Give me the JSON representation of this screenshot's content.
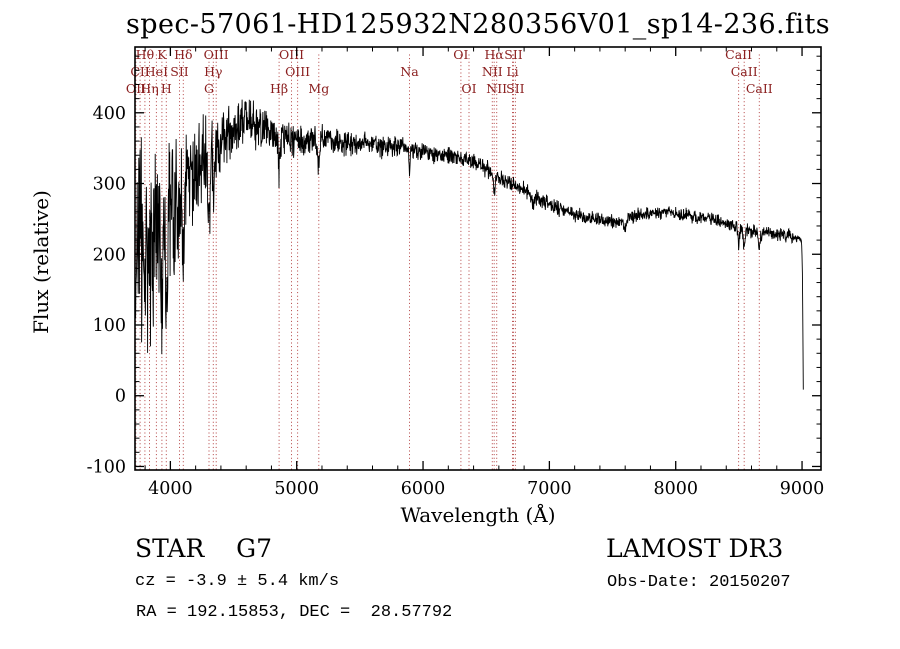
{
  "title": "spec-57061-HD125932N280356V01_sp14-236.fits",
  "colors": {
    "background": "#ffffff",
    "spectrum": "#000000",
    "axis": "#000000",
    "marker": "#b24040",
    "label": "#8b2020"
  },
  "footer": {
    "class_label": "STAR    G7",
    "cz": "cz = -3.9 ± 5.4 km/s",
    "radec": "RA = 192.15853, DEC =  28.57792",
    "survey": "LAMOST DR3",
    "obs_date": "Obs-Date: 20150207"
  },
  "chart_data": {
    "type": "line",
    "title": "spec-57061-HD125932N280356V01_sp14-236.fits",
    "xlabel": "Wavelength (Å)",
    "ylabel": "Flux (relative)",
    "xlim": [
      3720,
      9150
    ],
    "ylim": [
      -105,
      493
    ],
    "xticks": [
      4000,
      5000,
      6000,
      7000,
      8000,
      9000
    ],
    "yticks": [
      -100,
      0,
      100,
      200,
      300,
      400
    ],
    "grid": false,
    "legend": "none",
    "seed": 20150207,
    "sample_range": [
      3725,
      9010
    ],
    "sample_step": 2.5,
    "continuum": [
      [
        3740,
        185
      ],
      [
        3770,
        205
      ],
      [
        3800,
        175
      ],
      [
        3830,
        210
      ],
      [
        3860,
        185
      ],
      [
        3900,
        215
      ],
      [
        3940,
        235
      ],
      [
        3980,
        255
      ],
      [
        4020,
        270
      ],
      [
        4060,
        280
      ],
      [
        4100,
        290
      ],
      [
        4150,
        305
      ],
      [
        4200,
        315
      ],
      [
        4250,
        330
      ],
      [
        4300,
        340
      ],
      [
        4350,
        350
      ],
      [
        4400,
        362
      ],
      [
        4450,
        372
      ],
      [
        4500,
        380
      ],
      [
        4550,
        385
      ],
      [
        4600,
        388
      ],
      [
        4650,
        385
      ],
      [
        4700,
        382
      ],
      [
        4750,
        378
      ],
      [
        4800,
        372
      ],
      [
        4850,
        368
      ],
      [
        4900,
        366
      ],
      [
        4950,
        362
      ],
      [
        5000,
        360
      ],
      [
        5100,
        358
      ],
      [
        5200,
        363
      ],
      [
        5300,
        360
      ],
      [
        5400,
        356
      ],
      [
        5500,
        359
      ],
      [
        5600,
        354
      ],
      [
        5700,
        350
      ],
      [
        5800,
        354
      ],
      [
        5900,
        349
      ],
      [
        6000,
        345
      ],
      [
        6100,
        341
      ],
      [
        6200,
        340
      ],
      [
        6300,
        336
      ],
      [
        6400,
        331
      ],
      [
        6500,
        322
      ],
      [
        6600,
        312
      ],
      [
        6700,
        301
      ],
      [
        6800,
        291
      ],
      [
        6900,
        281
      ],
      [
        7000,
        271
      ],
      [
        7100,
        262
      ],
      [
        7200,
        256
      ],
      [
        7300,
        251
      ],
      [
        7400,
        248
      ],
      [
        7500,
        246
      ],
      [
        7600,
        250
      ],
      [
        7700,
        255
      ],
      [
        7800,
        258
      ],
      [
        7900,
        260
      ],
      [
        8000,
        258
      ],
      [
        8100,
        255
      ],
      [
        8200,
        252
      ],
      [
        8300,
        249
      ],
      [
        8400,
        243
      ],
      [
        8500,
        236
      ],
      [
        8600,
        232
      ],
      [
        8700,
        230
      ],
      [
        8800,
        228
      ],
      [
        8900,
        226
      ],
      [
        8995,
        221
      ],
      [
        9002,
        190
      ],
      [
        9010,
        5
      ]
    ],
    "noise_profile": [
      [
        3740,
        115
      ],
      [
        3800,
        110
      ],
      [
        3850,
        105
      ],
      [
        3900,
        95
      ],
      [
        3950,
        85
      ],
      [
        4000,
        75
      ],
      [
        4050,
        65
      ],
      [
        4100,
        58
      ],
      [
        4200,
        48
      ],
      [
        4300,
        42
      ],
      [
        4400,
        33
      ],
      [
        4500,
        28
      ],
      [
        4600,
        26
      ],
      [
        4700,
        24
      ],
      [
        4800,
        22
      ],
      [
        4900,
        20
      ],
      [
        5000,
        18
      ],
      [
        5200,
        15
      ],
      [
        5400,
        14
      ],
      [
        5600,
        12
      ],
      [
        5800,
        11
      ],
      [
        6000,
        10
      ],
      [
        6300,
        9
      ],
      [
        6600,
        9
      ],
      [
        7000,
        8
      ],
      [
        7500,
        7
      ],
      [
        8000,
        7
      ],
      [
        8500,
        7
      ],
      [
        8900,
        7
      ],
      [
        9010,
        5
      ]
    ],
    "absorption_lines": [
      {
        "wl": 3933,
        "depth": 120,
        "width": 10
      },
      {
        "wl": 3968,
        "depth": 110,
        "width": 10
      },
      {
        "wl": 4102,
        "depth": 90,
        "width": 9
      },
      {
        "wl": 4306,
        "depth": 70,
        "width": 14
      },
      {
        "wl": 4341,
        "depth": 65,
        "width": 9
      },
      {
        "wl": 4861,
        "depth": 45,
        "width": 9
      },
      {
        "wl": 5175,
        "depth": 35,
        "width": 13
      },
      {
        "wl": 5893,
        "depth": 30,
        "width": 9
      },
      {
        "wl": 6563,
        "depth": 28,
        "width": 9
      },
      {
        "wl": 6870,
        "depth": 18,
        "width": 12
      },
      {
        "wl": 7600,
        "depth": 15,
        "width": 15
      },
      {
        "wl": 8498,
        "depth": 20,
        "width": 9
      },
      {
        "wl": 8542,
        "depth": 25,
        "width": 10
      },
      {
        "wl": 8662,
        "depth": 22,
        "width": 10
      }
    ],
    "spectral_lines": [
      {
        "wl": 3727,
        "label": "OII",
        "row": 3
      },
      {
        "wl": 3760,
        "label": "CII",
        "row": 2
      },
      {
        "wl": 3798,
        "label": "Hθ",
        "row": 1
      },
      {
        "wl": 3835,
        "label": "Hη",
        "row": 3
      },
      {
        "wl": 3889,
        "label": "HeI",
        "row": 2
      },
      {
        "wl": 3933,
        "label": "K",
        "row": 1
      },
      {
        "wl": 3968,
        "label": "H",
        "row": 3
      },
      {
        "wl": 4072,
        "label": "SII",
        "row": 2
      },
      {
        "wl": 4102,
        "label": "Hδ",
        "row": 1
      },
      {
        "wl": 4306,
        "label": "G",
        "row": 3
      },
      {
        "wl": 4340,
        "label": "Hγ",
        "row": 2
      },
      {
        "wl": 4363,
        "label": "OIII",
        "row": 1
      },
      {
        "wl": 4861,
        "label": "Hβ",
        "row": 3
      },
      {
        "wl": 4959,
        "label": "OIII",
        "row": 1
      },
      {
        "wl": 5007,
        "label": "OIII",
        "row": 2
      },
      {
        "wl": 5175,
        "label": "Mg",
        "row": 3
      },
      {
        "wl": 5893,
        "label": "Na",
        "row": 2
      },
      {
        "wl": 6300,
        "label": "OI",
        "row": 1
      },
      {
        "wl": 6364,
        "label": "OI",
        "row": 3
      },
      {
        "wl": 6548,
        "label": "NII",
        "row": 2
      },
      {
        "wl": 6563,
        "label": "Hα",
        "row": 1
      },
      {
        "wl": 6583,
        "label": "NII",
        "row": 3
      },
      {
        "wl": 6708,
        "label": "Li",
        "row": 2
      },
      {
        "wl": 6716,
        "label": "SII",
        "row": 1
      },
      {
        "wl": 6731,
        "label": "SII",
        "row": 3
      },
      {
        "wl": 8498,
        "label": "CaII",
        "row": 1
      },
      {
        "wl": 8542,
        "label": "CaII",
        "row": 2
      },
      {
        "wl": 8662,
        "label": "CaII",
        "row": 3
      }
    ]
  }
}
